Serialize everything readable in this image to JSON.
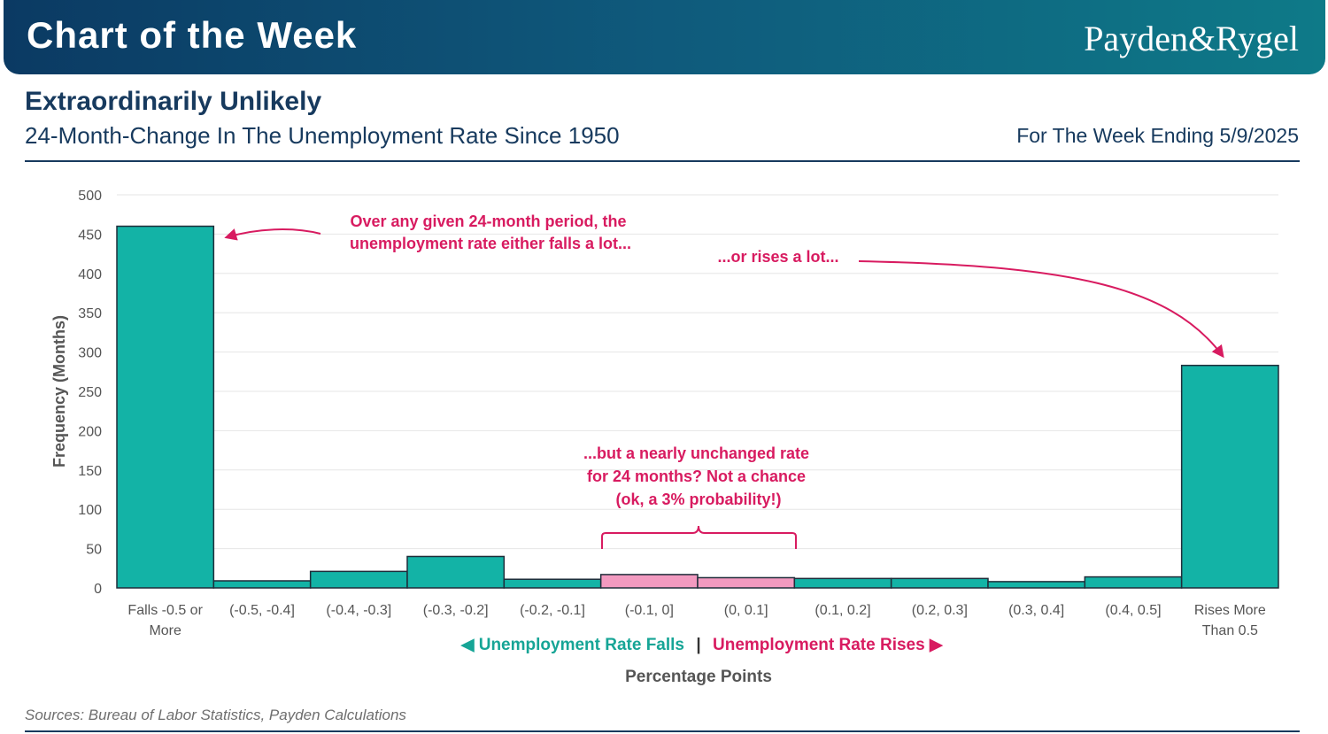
{
  "header": {
    "banner_title": "Chart of the Week",
    "brand": "Payden&Rygel"
  },
  "source_note": "Sources: Bureau of Labor Statistics, Payden Calculations",
  "colors": {
    "banner_start": "#0b3a63",
    "banner_end": "#0e7a88",
    "bar_teal": "#13b3a6",
    "bar_pink": "#f29ac0",
    "accent_pink": "#d81b60",
    "legend_teal": "#16a596",
    "title_navy": "#173a5e"
  },
  "chart_data": {
    "type": "bar",
    "title": "Extraordinarily Unlikely",
    "subtitle": "24-Month-Change In The Unemployment Rate Since 1950",
    "date_note": "For The Week Ending 5/9/2025",
    "ylabel": "Frequency (Months)",
    "xlabel": "Percentage Points",
    "ylim": [
      0,
      500
    ],
    "yticks": [
      0,
      50,
      100,
      150,
      200,
      250,
      300,
      350,
      400,
      450,
      500
    ],
    "grid": true,
    "categories": [
      "Falls -0.5 or\nMore",
      "(-0.5, -0.4]",
      "(-0.4, -0.3]",
      "(-0.3, -0.2]",
      "(-0.2, -0.1]",
      "(-0.1, 0]",
      "(0, 0.1]",
      "(0.1, 0.2]",
      "(0.2, 0.3]",
      "(0.3, 0.4]",
      "(0.4, 0.5]",
      "Rises More\nThan 0.5"
    ],
    "values": [
      460,
      9,
      21,
      40,
      11,
      17,
      13,
      12,
      12,
      8,
      14,
      283
    ],
    "highlighted": [
      false,
      false,
      false,
      false,
      false,
      true,
      true,
      false,
      false,
      false,
      false,
      false
    ],
    "legend": {
      "falls": "Unemployment Rate Falls",
      "separator": "|",
      "rises": "Unemployment Rate Rises"
    },
    "annotations": {
      "falls_lot": [
        "Over any given 24-month period, the",
        "unemployment rate either falls a lot..."
      ],
      "rises_lot": [
        "...or rises a lot..."
      ],
      "unchanged": [
        "...but a nearly unchanged rate",
        "for 24 months? Not a chance",
        "(ok, a 3% probability!)"
      ]
    }
  }
}
